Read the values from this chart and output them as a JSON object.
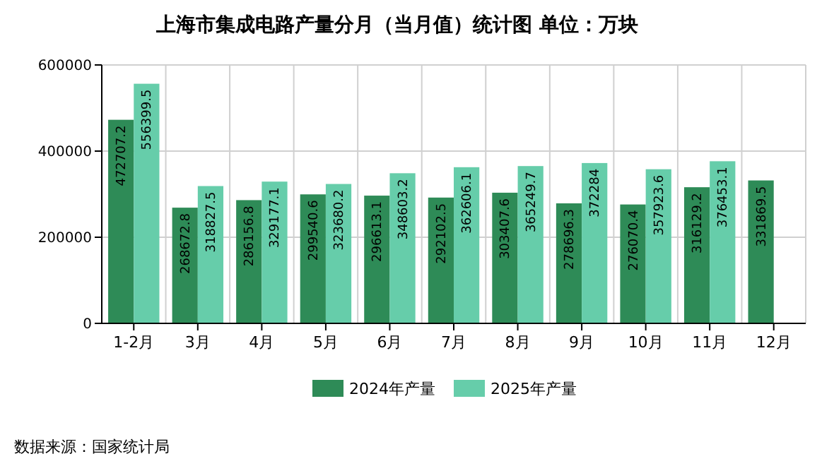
{
  "chart_data": {
    "type": "bar",
    "title": "上海市集成电路产量分月（当月值）统计图 单位：万块",
    "categories": [
      "1-2月",
      "3月",
      "4月",
      "5月",
      "6月",
      "7月",
      "8月",
      "9月",
      "10月",
      "11月",
      "12月"
    ],
    "series": [
      {
        "name": "2024年产量",
        "color": "#2e8b57",
        "values": [
          472707.2,
          268672.8,
          286156.8,
          299540.6,
          296613.1,
          292102.5,
          303407.6,
          278696.3,
          276070.4,
          316129.2,
          331869.5
        ]
      },
      {
        "name": "2025年产量",
        "color": "#66cdaa",
        "values": [
          556399.5,
          318827.5,
          329177.1,
          323680.2,
          348603.2,
          362606.1,
          365249.7,
          372284,
          357923.6,
          376453.1,
          null
        ]
      }
    ],
    "ylim": [
      0,
      600000
    ],
    "yticks": [
      0,
      200000,
      400000,
      600000
    ],
    "grid": true,
    "legend": "bottom",
    "data_labels": true,
    "annotations": [
      "数据来源：国家统计局"
    ]
  }
}
